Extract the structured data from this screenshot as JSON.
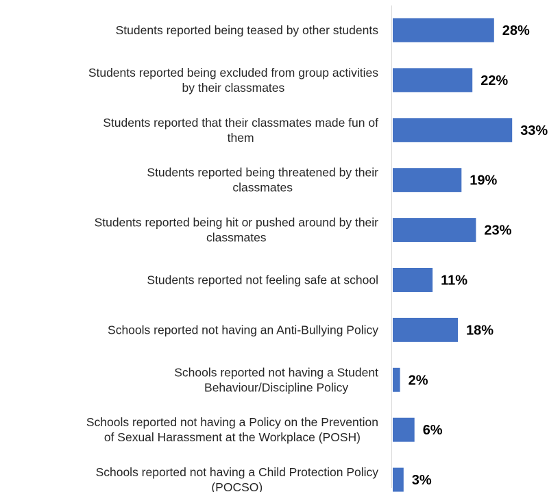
{
  "colors": {
    "bar": "#4472C4",
    "axis": "#D9D9D9",
    "label_text": "#262626",
    "value_text": "#000000"
  },
  "chart_data": {
    "type": "bar",
    "orientation": "horizontal",
    "title": "",
    "xlabel": "",
    "ylabel": "",
    "grid": false,
    "legend": "none",
    "xlim": [
      0,
      35
    ],
    "categories": [
      [
        "Students reported being teased by other students"
      ],
      [
        "Students reported being excluded from group activities",
        "by their classmates"
      ],
      [
        "Students reported that their classmates made fun of",
        "them"
      ],
      [
        "Students reported being threatened by their",
        "classmates"
      ],
      [
        "Students reported being hit or pushed around by their",
        "classmates"
      ],
      [
        "Students reported not feeling safe at school"
      ],
      [
        "Schools reported not having an Anti-Bullying Policy"
      ],
      [
        "Schools reported not having a Student",
        "Behaviour/Discipline Policy"
      ],
      [
        "Schools reported not having a Policy on the Prevention",
        "of Sexual Harassment at the Workplace (POSH)"
      ],
      [
        "Schools reported not having a Child Protection Policy",
        "(POCSO)"
      ]
    ],
    "values": [
      28,
      22,
      33,
      19,
      23,
      11,
      18,
      2,
      6,
      3
    ],
    "value_labels": [
      "28%",
      "22%",
      "33%",
      "19%",
      "23%",
      "11%",
      "18%",
      "2%",
      "6%",
      "3%"
    ],
    "unit": "%"
  }
}
